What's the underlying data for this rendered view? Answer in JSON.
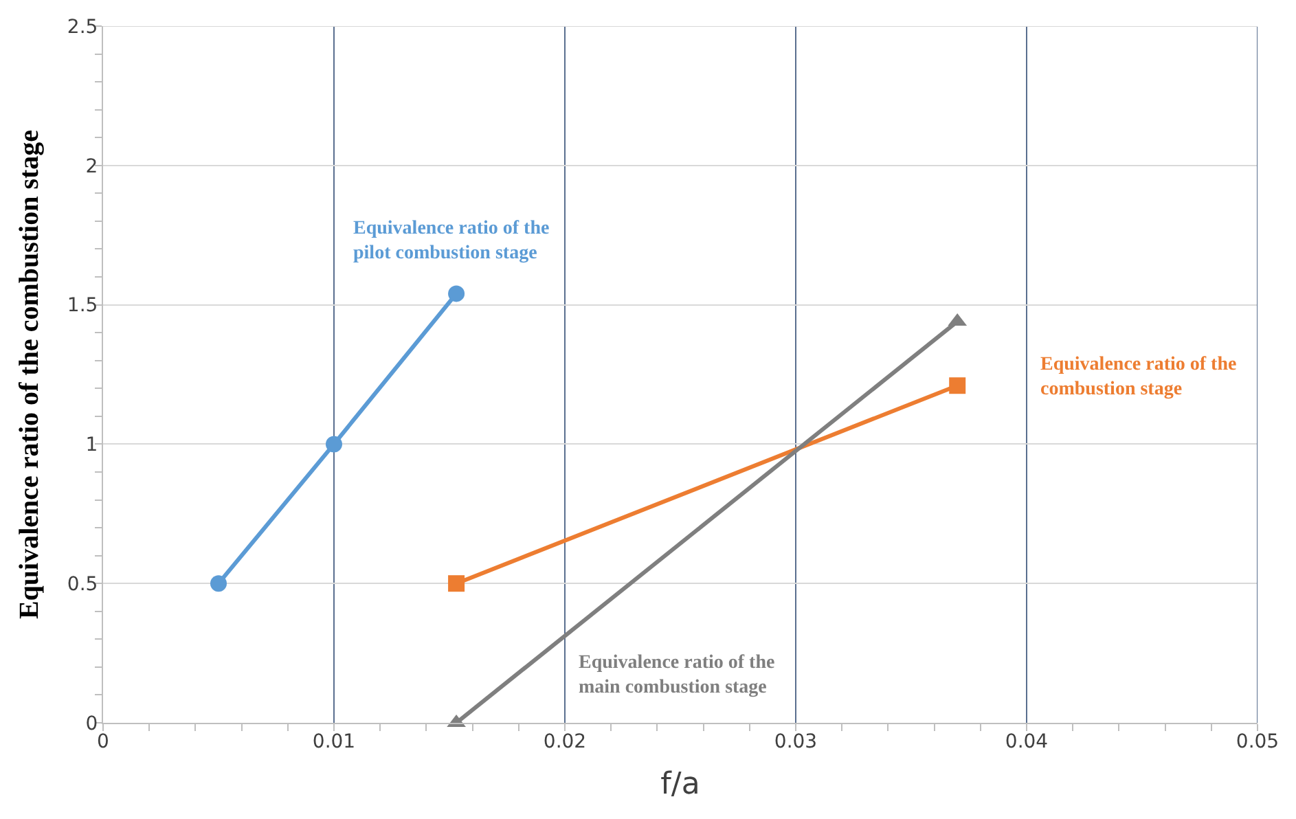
{
  "chart_data": {
    "type": "line",
    "xlabel": "f/a",
    "ylabel": "Equivalence ratio of the combustion stage",
    "xlim": [
      0,
      0.05
    ],
    "xticks": [
      0,
      0.01,
      0.02,
      0.03,
      0.04,
      0.05
    ],
    "ylim": [
      0,
      2.5
    ],
    "yticks": [
      0,
      0.5,
      1,
      1.5,
      2,
      2.5
    ],
    "grid": true,
    "legend": false,
    "series": [
      {
        "name": "Equivalence ratio of the pilot combustion stage",
        "color": "#5b9bd5",
        "marker": "circle",
        "x": [
          0.005,
          0.01,
          0.0153
        ],
        "values": [
          0.5,
          1,
          1.54
        ]
      },
      {
        "name": "Equivalence ratio of the combustion stage",
        "color": "#ed7d31",
        "marker": "square",
        "x": [
          0.0153,
          0.037
        ],
        "values": [
          0.5,
          1.21
        ]
      },
      {
        "name": "Equivalence ratio of the main combustion stage",
        "color": "#7f7f7f",
        "marker": "triangle",
        "x": [
          0.0153,
          0.037
        ],
        "values": [
          0,
          1.44
        ]
      }
    ]
  }
}
